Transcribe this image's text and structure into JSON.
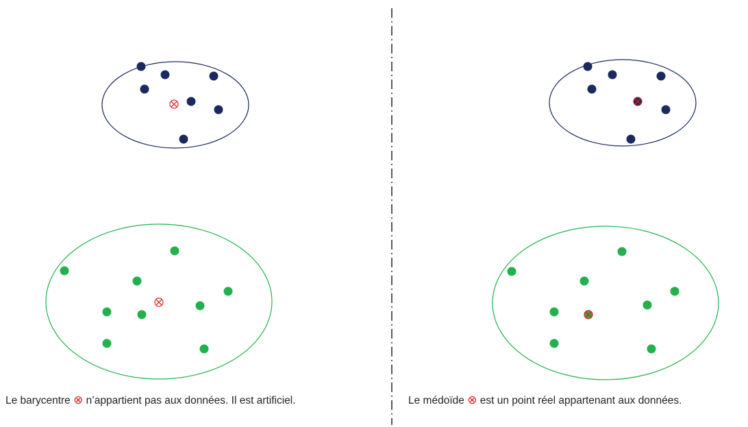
{
  "left": {
    "caption": {
      "before": "Le barycentre",
      "symbol": "⊗",
      "after": "n’appartient pas aux données. Il est artificiel."
    }
  },
  "right": {
    "caption": {
      "before": "Le médoïde",
      "symbol": "⊗",
      "after": "est un point réel appartenant aux données."
    }
  }
}
